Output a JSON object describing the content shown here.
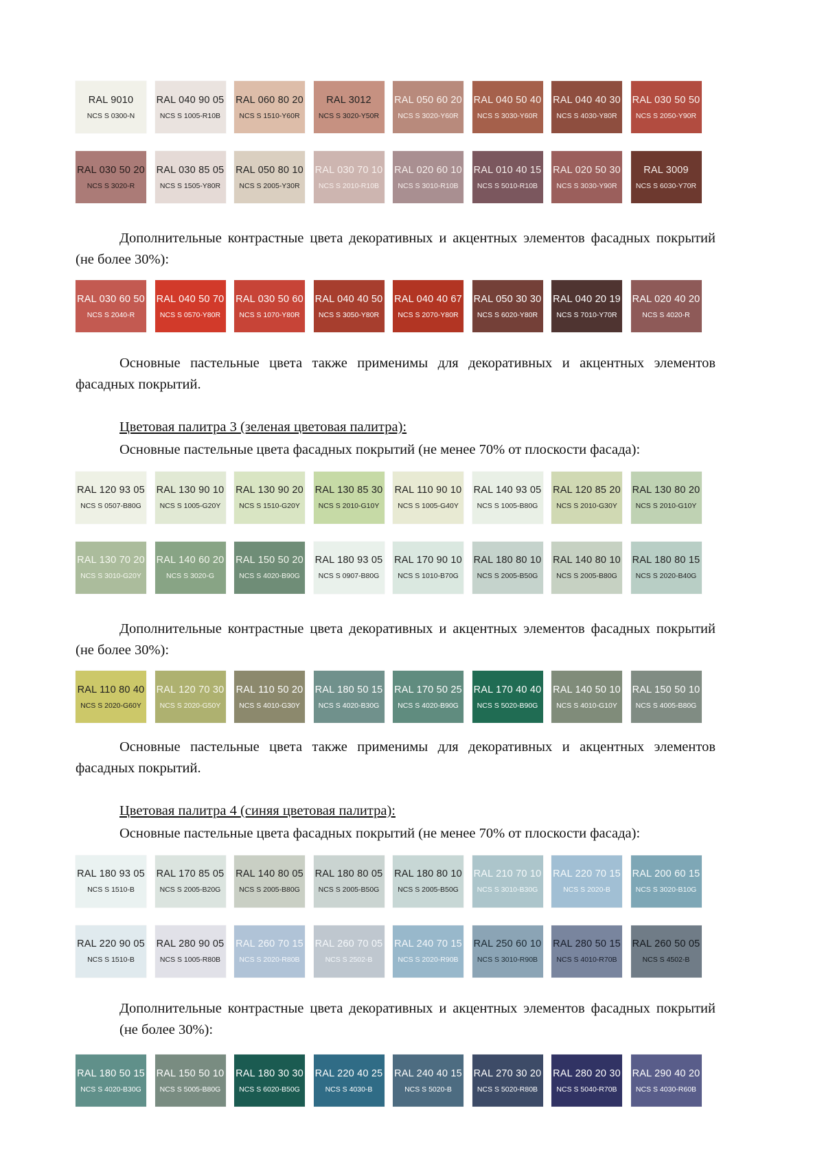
{
  "texts": {
    "contrast_intro": "Дополнительные контрастные цвета декоративных и акцентных элементов фасадных покрытий (не более 30%):",
    "pastel_note": "Основные пастельные цвета также применимы для декоративных и акцентных элементов фасадных покрытий.",
    "pastel_intro": "Основные пастельные цвета фасадных покрытий (не менее 70% от плоскости фасада):",
    "palette3_heading": "Цветовая палитра 3 (зеленая цветовая палитра):",
    "palette4_heading": "Цветовая палитра 4 (синяя цветовая палитра):"
  },
  "palette2": {
    "pastel_rows": [
      [
        {
          "ral": "RAL 9010",
          "ncs": "NCS S 0300-N",
          "bg": "#f1f1e9",
          "fg": "#1f1f1f"
        },
        {
          "ral": "RAL 040 90 05",
          "ncs": "NCS S 1005-R10B",
          "bg": "#eae3df",
          "fg": "#1f1f1f"
        },
        {
          "ral": "RAL 060 80 20",
          "ncs": "NCS S 1510-Y60R",
          "bg": "#ddbda9",
          "fg": "#1f1f1f"
        },
        {
          "ral": "RAL 3012",
          "ncs": "NCS S 3020-Y50R",
          "bg": "#c69181",
          "fg": "#1f1f1f"
        },
        {
          "ral": "RAL 050 60 20",
          "ncs": "NCS S 3020-Y60R",
          "bg": "#b88a7c",
          "fg": "#fbf4f0"
        },
        {
          "ral": "RAL 040 50 40",
          "ncs": "NCS S 3030-Y60R",
          "bg": "#a5604b",
          "fg": "#fbf4f0"
        },
        {
          "ral": "RAL 040 40 30",
          "ncs": "NCS S 4030-Y80R",
          "bg": "#8e4e3f",
          "fg": "#fbf4f0"
        },
        {
          "ral": "RAL 030 50 50",
          "ncs": "NCS S 2050-Y90R",
          "bg": "#b24c40",
          "fg": "#fbf4f0"
        }
      ],
      [
        {
          "ral": "RAL 030 50 20",
          "ncs": "NCS S 3020-R",
          "bg": "#ab7b77",
          "fg": "#241a19"
        },
        {
          "ral": "RAL 030 85 05",
          "ncs": "NCS S 1505-Y80R",
          "bg": "#e5dad6",
          "fg": "#1f1f1f"
        },
        {
          "ral": "RAL 050 80 10",
          "ncs": "NCS S 2005-Y30R",
          "bg": "#dacfc0",
          "fg": "#1f1f1f"
        },
        {
          "ral": "RAL 030 70 10",
          "ncs": "NCS S 2010-R10B",
          "bg": "#cdb5b0",
          "fg": "#f8f0ed"
        },
        {
          "ral": "RAL 020 60 10",
          "ncs": "NCS S 3010-R10B",
          "bg": "#a98f91",
          "fg": "#f8f0ed"
        },
        {
          "ral": "RAL 010 40 15",
          "ncs": "NCS S 5010-R10B",
          "bg": "#7b575e",
          "fg": "#f8f0ed"
        },
        {
          "ral": "RAL 020 50 30",
          "ncs": "NCS S 3030-Y90R",
          "bg": "#9b5f5c",
          "fg": "#f8f0ed"
        },
        {
          "ral": "RAL 3009",
          "ncs": "NCS S 6030-Y70R",
          "bg": "#6d392f",
          "fg": "#f8f0ed"
        }
      ]
    ],
    "contrast_row": [
      {
        "ral": "RAL 030 60 50",
        "ncs": "NCS S 2040-R",
        "bg": "#c35a51",
        "fg": "#ffffff"
      },
      {
        "ral": "RAL 040 50 70",
        "ncs": "NCS S 0570-Y80R",
        "bg": "#d23a2a",
        "fg": "#ffffff"
      },
      {
        "ral": "RAL 030 50 60",
        "ncs": "NCS S 1070-Y80R",
        "bg": "#c74437",
        "fg": "#ffffff"
      },
      {
        "ral": "RAL 040 40 50",
        "ncs": "NCS S 3050-Y80R",
        "bg": "#a73e2e",
        "fg": "#ffffff"
      },
      {
        "ral": "RAL 040 40 67",
        "ncs": "NCS S 2070-Y80R",
        "bg": "#b23523",
        "fg": "#ffffff"
      },
      {
        "ral": "RAL 050 30 30",
        "ncs": "NCS S 6020-Y80R",
        "bg": "#744038",
        "fg": "#ffffff"
      },
      {
        "ral": "RAL 040 20 19",
        "ncs": "NCS S 7010-Y70R",
        "bg": "#4f3431",
        "fg": "#ffffff"
      },
      {
        "ral": "RAL 020 40 20",
        "ncs": "NCS S 4020-R",
        "bg": "#8e5a58",
        "fg": "#ffffff"
      }
    ]
  },
  "palette3": {
    "pastel_rows": [
      [
        {
          "ral": "RAL 120 93 05",
          "ncs": "NCS S 0507-B80G",
          "bg": "#eef1e5",
          "fg": "#1f1f1f"
        },
        {
          "ral": "RAL 130 90 10",
          "ncs": "NCS S 1005-G20Y",
          "bg": "#e1e9d4",
          "fg": "#1f1f1f"
        },
        {
          "ral": "RAL 130 90 20",
          "ncs": "NCS S 1510-G20Y",
          "bg": "#d9e5c3",
          "fg": "#1f1f1f"
        },
        {
          "ral": "RAL 130 85 30",
          "ncs": "NCS S 2010-G10Y",
          "bg": "#c6daa6",
          "fg": "#1f1f1f"
        },
        {
          "ral": "RAL 110 90 10",
          "ncs": "NCS S 1005-G40Y",
          "bg": "#e8ead3",
          "fg": "#1f1f1f"
        },
        {
          "ral": "RAL 140 93 05",
          "ncs": "NCS S 1005-B80G",
          "bg": "#e9f0e6",
          "fg": "#1f1f1f"
        },
        {
          "ral": "RAL 120 85 20",
          "ncs": "NCS S 2010-G30Y",
          "bg": "#d0d9b3",
          "fg": "#1f1f1f"
        },
        {
          "ral": "RAL 130 80 20",
          "ncs": "NCS S 2010-G10Y",
          "bg": "#bfd2b3",
          "fg": "#1f1f1f"
        }
      ],
      [
        {
          "ral": "RAL 130 70 20",
          "ncs": "NCS S 3010-G20Y",
          "bg": "#abbc9c",
          "fg": "#f7f9f1"
        },
        {
          "ral": "RAL 140 60 20",
          "ncs": "NCS S 3020-G",
          "bg": "#88a485",
          "fg": "#f7f9f1"
        },
        {
          "ral": "RAL 150 50 20",
          "ncs": "NCS S 4020-B90G",
          "bg": "#6f8d77",
          "fg": "#f7f9f1"
        },
        {
          "ral": "RAL 180 93 05",
          "ncs": "NCS S 0907-B80G",
          "bg": "#e9f1eb",
          "fg": "#1f1f1f"
        },
        {
          "ral": "RAL 170 90 10",
          "ncs": "NCS S 1010-B70G",
          "bg": "#dae8e0",
          "fg": "#1f1f1f"
        },
        {
          "ral": "RAL 180 80 10",
          "ncs": "NCS S 2005-B50G",
          "bg": "#c5d3cc",
          "fg": "#1f1f1f"
        },
        {
          "ral": "RAL 140 80 10",
          "ncs": "NCS S 2005-B80G",
          "bg": "#c6d1c2",
          "fg": "#1f1f1f"
        },
        {
          "ral": "RAL 180 80 15",
          "ncs": "NCS S 2020-B40G",
          "bg": "#b8cec5",
          "fg": "#1f1f1f"
        }
      ]
    ],
    "contrast_row": [
      {
        "ral": "RAL 110 80 40",
        "ncs": "NCS S 2020-G60Y",
        "bg": "#ccc869",
        "fg": "#1f1f1f"
      },
      {
        "ral": "RAL 120 70 30",
        "ncs": "NCS S 2020-G50Y",
        "bg": "#aeb170",
        "fg": "#f8f8ee"
      },
      {
        "ral": "RAL 110 50 20",
        "ncs": "NCS S 4010-G30Y",
        "bg": "#8c896d",
        "fg": "#ffffff"
      },
      {
        "ral": "RAL 180 50 15",
        "ncs": "NCS S 4020-B30G",
        "bg": "#70918c",
        "fg": "#ffffff"
      },
      {
        "ral": "RAL 170 50 25",
        "ncs": "NCS S 4020-B90G",
        "bg": "#608c7f",
        "fg": "#ffffff"
      },
      {
        "ral": "RAL 170 40 40",
        "ncs": "NCS S 5020-B90G",
        "bg": "#206c53",
        "fg": "#ffffff"
      },
      {
        "ral": "RAL 140 50 10",
        "ncs": "NCS S 4010-G10Y",
        "bg": "#808c7a",
        "fg": "#ffffff"
      },
      {
        "ral": "RAL 150 50 10",
        "ncs": "NCS S 4005-B80G",
        "bg": "#808c83",
        "fg": "#ffffff"
      }
    ]
  },
  "palette4": {
    "pastel_rows": [
      [
        {
          "ral": "RAL 180 93 05",
          "ncs": "NCS S 1510-B",
          "bg": "#eaf2f1",
          "fg": "#1f1f1f"
        },
        {
          "ral": "RAL 170 85 05",
          "ncs": "NCS S 2005-B20G",
          "bg": "#dbe4df",
          "fg": "#1f1f1f"
        },
        {
          "ral": "RAL 140 80 05",
          "ncs": "NCS S 2005-B80G",
          "bg": "#c9cfc4",
          "fg": "#1f1f1f"
        },
        {
          "ral": "RAL 180 80 05",
          "ncs": "NCS S 2005-B50G",
          "bg": "#cad4d1",
          "fg": "#1f1f1f"
        },
        {
          "ral": "RAL 180 80 10",
          "ncs": "NCS S 2005-B50G",
          "bg": "#c7d7d5",
          "fg": "#1f1f1f"
        },
        {
          "ral": "RAL 210 70 10",
          "ncs": "NCS S 3010-B30G",
          "bg": "#acc5cb",
          "fg": "#f5fafb"
        },
        {
          "ral": "RAL 220 70 15",
          "ncs": "NCS S 2020-B",
          "bg": "#a1bfd4",
          "fg": "#f5fafb"
        },
        {
          "ral": "RAL 200 60 15",
          "ncs": "NCS S 3020-B10G",
          "bg": "#7ea7b6",
          "fg": "#f5fafb"
        }
      ],
      [
        {
          "ral": "RAL 220 90 05",
          "ncs": "NCS S 1510-B",
          "bg": "#e0eaee",
          "fg": "#1f1f1f"
        },
        {
          "ral": "RAL 280 90 05",
          "ncs": "NCS S 1005-R80B",
          "bg": "#e1e1e8",
          "fg": "#1f1f1f"
        },
        {
          "ral": "RAL 260 70 15",
          "ncs": "NCS S 2020-R80B",
          "bg": "#b0c3d7",
          "fg": "#f5f8fb"
        },
        {
          "ral": "RAL 260 70 05",
          "ncs": "NCS S 2502-B",
          "bg": "#bfc7cf",
          "fg": "#f5f8fb"
        },
        {
          "ral": "RAL 240 70 15",
          "ncs": "NCS S 2020-R90B",
          "bg": "#98b8cb",
          "fg": "#f5f8fb"
        },
        {
          "ral": "RAL 250 60 10",
          "ncs": "NCS S 3010-R90B",
          "bg": "#8ba4b5",
          "fg": "#1c2a33"
        },
        {
          "ral": "RAL 280 50 15",
          "ncs": "NCS S 4010-R70B",
          "bg": "#79859e",
          "fg": "#181d2a"
        },
        {
          "ral": "RAL 260 50 05",
          "ncs": "NCS S 4502-B",
          "bg": "#707c87",
          "fg": "#14191e"
        }
      ]
    ],
    "contrast_row": [
      {
        "ral": "RAL 180 50 15",
        "ncs": "NCS S 4020-B30G",
        "bg": "#60908a",
        "fg": "#ffffff"
      },
      {
        "ral": "RAL 150 50 10",
        "ncs": "NCS S 5005-B80G",
        "bg": "#798c81",
        "fg": "#ffffff"
      },
      {
        "ral": "RAL 180 30 30",
        "ncs": "NCS S 6020-B50G",
        "bg": "#1b5b51",
        "fg": "#ffffff"
      },
      {
        "ral": "RAL 220 40 25",
        "ncs": "NCS S 4030-B",
        "bg": "#306c86",
        "fg": "#ffffff"
      },
      {
        "ral": "RAL 240 40 15",
        "ncs": "NCS S 5020-B",
        "bg": "#4d6c81",
        "fg": "#ffffff"
      },
      {
        "ral": "RAL 270 30 20",
        "ncs": "NCS S 5020-R80B",
        "bg": "#3d4b67",
        "fg": "#ffffff"
      },
      {
        "ral": "RAL 280 20 30",
        "ncs": "NCS S 5040-R70B",
        "bg": "#313364",
        "fg": "#ffffff"
      },
      {
        "ral": "RAL 290 40 20",
        "ncs": "NCS S 4030-R60B",
        "bg": "#595d8a",
        "fg": "#ffffff"
      }
    ]
  }
}
